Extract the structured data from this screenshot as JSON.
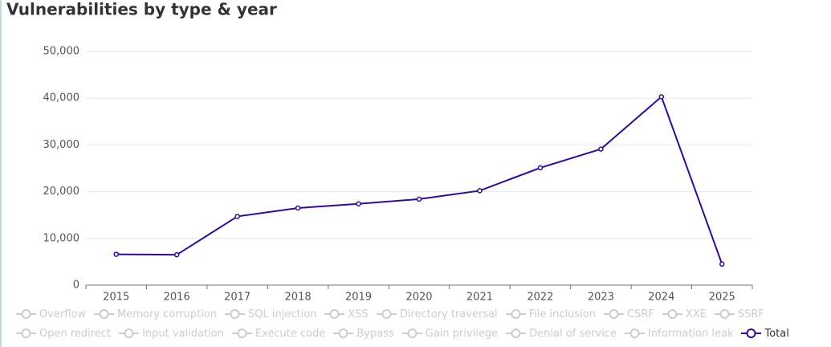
{
  "chart_data": {
    "type": "line",
    "title": "Vulnerabilities by type & year",
    "categories": [
      "2015",
      "2016",
      "2017",
      "2018",
      "2019",
      "2020",
      "2021",
      "2022",
      "2023",
      "2024",
      "2025"
    ],
    "series": [
      {
        "name": "Overflow",
        "color": "#cccccc",
        "visible": false
      },
      {
        "name": "Memory corruption",
        "color": "#cccccc",
        "visible": false
      },
      {
        "name": "SQL injection",
        "color": "#cccccc",
        "visible": false
      },
      {
        "name": "XSS",
        "color": "#cccccc",
        "visible": false
      },
      {
        "name": "Directory traversal",
        "color": "#cccccc",
        "visible": false
      },
      {
        "name": "File inclusion",
        "color": "#cccccc",
        "visible": false
      },
      {
        "name": "CSRF",
        "color": "#cccccc",
        "visible": false
      },
      {
        "name": "XXE",
        "color": "#cccccc",
        "visible": false
      },
      {
        "name": "SSRF",
        "color": "#cccccc",
        "visible": false
      },
      {
        "name": "Open redirect",
        "color": "#cccccc",
        "visible": false
      },
      {
        "name": "Input validation",
        "color": "#cccccc",
        "visible": false
      },
      {
        "name": "Execute code",
        "color": "#cccccc",
        "visible": false
      },
      {
        "name": "Bypass",
        "color": "#cccccc",
        "visible": false
      },
      {
        "name": "Gain privilege",
        "color": "#cccccc",
        "visible": false
      },
      {
        "name": "Denial of service",
        "color": "#cccccc",
        "visible": false
      },
      {
        "name": "Information leak",
        "color": "#cccccc",
        "visible": false
      },
      {
        "name": "Total",
        "color": "#2e0a9e",
        "visible": true,
        "values": [
          6600,
          6500,
          14700,
          16500,
          17400,
          18400,
          20200,
          25100,
          29100,
          40300,
          4500
        ]
      }
    ],
    "ylim": [
      0,
      50000
    ],
    "yticks": [
      0,
      {
        "value": 10000,
        "label": "10,000"
      },
      {
        "value": 20000,
        "label": "20,000"
      },
      {
        "value": 30000,
        "label": "30,000"
      },
      {
        "value": 40000,
        "label": "40,000"
      },
      {
        "value": 50000,
        "label": "50,000"
      }
    ],
    "grid": true
  }
}
